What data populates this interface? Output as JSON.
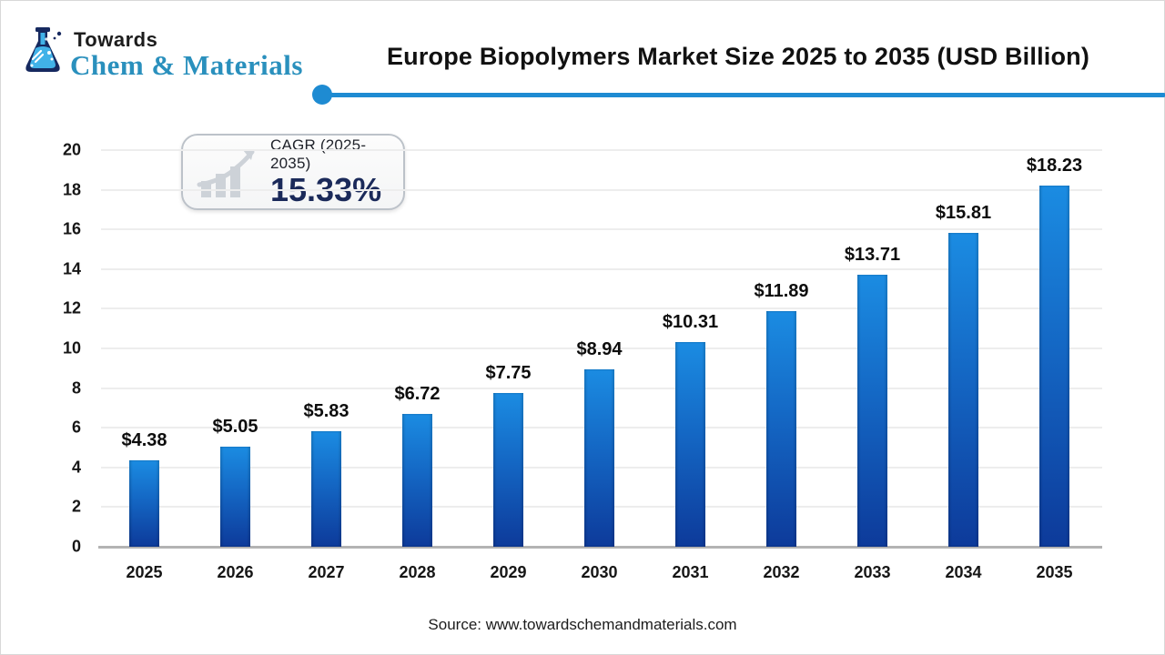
{
  "header": {
    "logo_line1": "Towards",
    "logo_line2": "Chem & Materials",
    "title": "Europe Biopolymers Market Size 2025 to 2035 (USD Billion)"
  },
  "badge": {
    "label": "CAGR (2025-2035)",
    "value": "15.33%"
  },
  "footer": {
    "source": "Source: www.towardschemandmaterials.com"
  },
  "colors": {
    "bar_top": "#1b8ce2",
    "bar_bottom": "#0d3a9a",
    "divider_blue": "#1e8bd2",
    "logo_teal": "#2a90bd",
    "flask_navy": "#16295f",
    "flask_liquid": "#41b2e8",
    "badge_value_navy": "#1b2a5a",
    "gridline": "#ededed",
    "axis_line": "#b3b3b3"
  },
  "chart_data": {
    "type": "bar",
    "title": "Europe Biopolymers Market Size 2025 to 2035 (USD Billion)",
    "categories": [
      "2025",
      "2026",
      "2027",
      "2028",
      "2029",
      "2030",
      "2031",
      "2032",
      "2033",
      "2034",
      "2035"
    ],
    "values": [
      4.38,
      5.05,
      5.83,
      6.72,
      7.75,
      8.94,
      10.31,
      11.89,
      13.71,
      15.81,
      18.23
    ],
    "labels": [
      "$4.38",
      "$5.05",
      "$5.83",
      "$6.72",
      "$7.75",
      "$8.94",
      "$10.31",
      "$11.89",
      "$13.71",
      "$15.81",
      "$18.23"
    ],
    "xlabel": "",
    "ylabel": "",
    "ylim": [
      0,
      20
    ],
    "ytick_step": 2,
    "grid": true,
    "legend": "none",
    "units": "USD Billion"
  }
}
